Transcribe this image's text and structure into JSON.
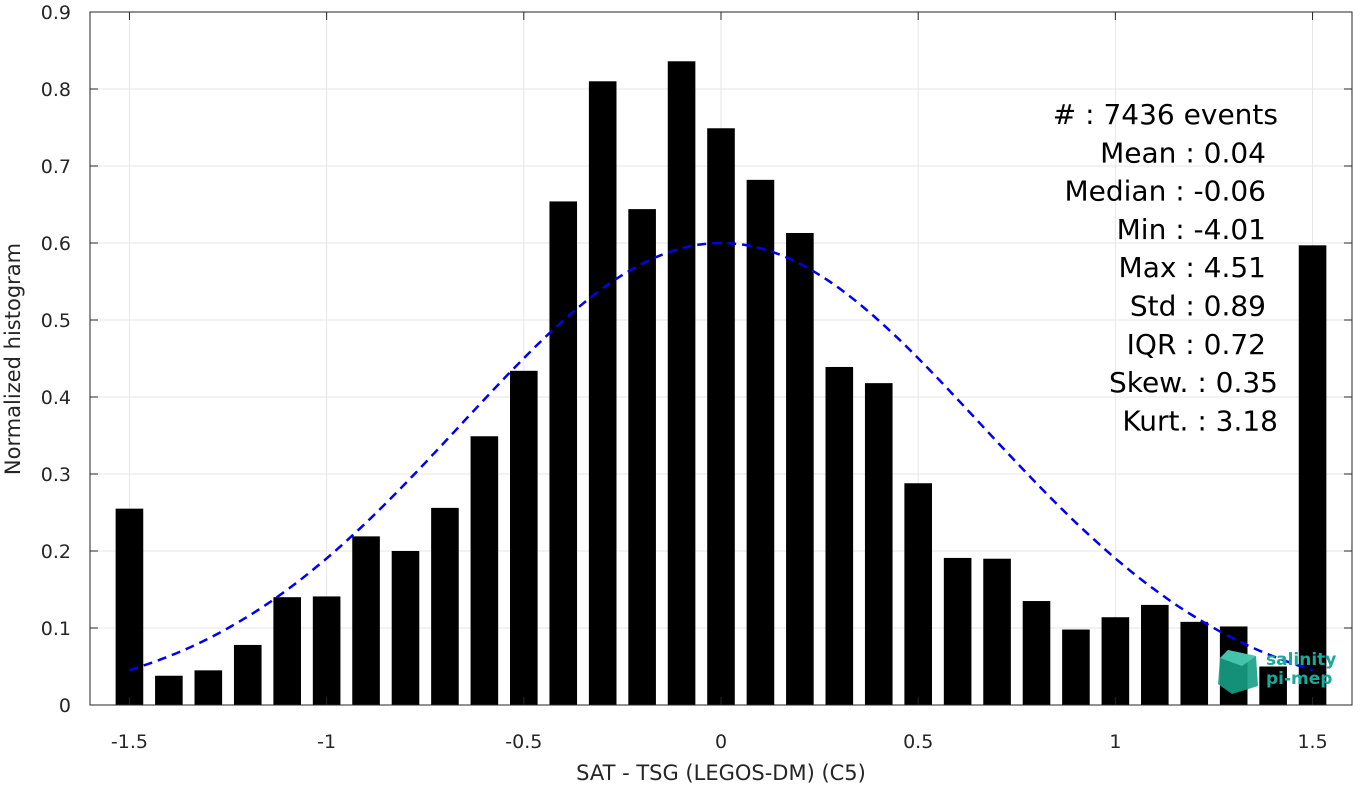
{
  "chart_data": {
    "type": "bar",
    "xlabel": "SAT - TSG (LEGOS-DM) (C5)",
    "ylabel": "Normalized histogram",
    "xlim": [
      -1.6,
      1.6
    ],
    "ylim": [
      0,
      0.9
    ],
    "xticks": [
      "-1.5",
      "-1",
      "-0.5",
      "0",
      "0.5",
      "1",
      "1.5"
    ],
    "xtick_values": [
      -1.5,
      -1,
      -0.5,
      0,
      0.5,
      1,
      1.5
    ],
    "yticks": [
      "0",
      "0.1",
      "0.2",
      "0.3",
      "0.4",
      "0.5",
      "0.6",
      "0.7",
      "0.8",
      "0.9"
    ],
    "ytick_values": [
      0,
      0.1,
      0.2,
      0.3,
      0.4,
      0.5,
      0.6,
      0.7,
      0.8,
      0.9
    ],
    "grid": true,
    "bar_color": "#000000",
    "bin_width": 0.1,
    "x": [
      -1.5,
      -1.4,
      -1.3,
      -1.2,
      -1.1,
      -1.0,
      -0.9,
      -0.8,
      -0.7,
      -0.6,
      -0.5,
      -0.4,
      -0.3,
      -0.2,
      -0.1,
      0.0,
      0.1,
      0.2,
      0.3,
      0.4,
      0.5,
      0.6,
      0.7,
      0.8,
      0.9,
      1.0,
      1.1,
      1.2,
      1.3,
      1.4,
      1.5
    ],
    "values": [
      0.255,
      0.038,
      0.045,
      0.078,
      0.14,
      0.141,
      0.219,
      0.2,
      0.256,
      0.349,
      0.434,
      0.654,
      0.81,
      0.644,
      0.836,
      0.749,
      0.682,
      0.613,
      0.439,
      0.418,
      0.288,
      0.191,
      0.19,
      0.135,
      0.098,
      0.114,
      0.13,
      0.108,
      0.102,
      0.05,
      0.597
    ],
    "fit": {
      "type": "gaussian",
      "style": "dashed",
      "color": "#0000ee",
      "mean": 0.0,
      "std": 0.66,
      "peak": 0.6,
      "x_range": [
        -1.5,
        1.5
      ]
    },
    "stats": [
      "#  : 7436 events",
      "Mean : 0.04",
      "Median : -0.06",
      "Min : -4.01",
      "Max : 4.51",
      "Std : 0.89",
      "IQR : 0.72",
      "Skew. : 0.35",
      "Kurt. : 3.18"
    ]
  },
  "logo": {
    "line1": "salinity",
    "line2": "pi-mep",
    "color": "#1aa89a"
  }
}
